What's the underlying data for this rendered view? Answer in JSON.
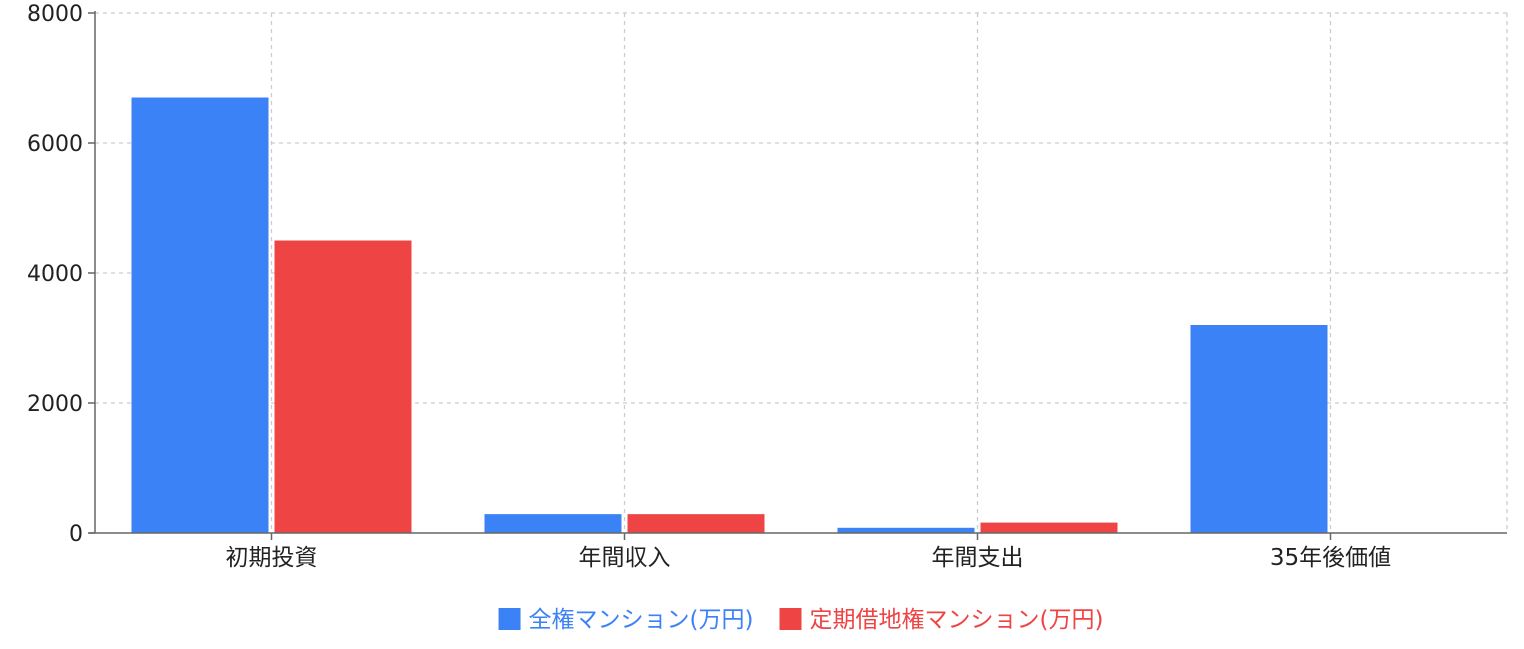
{
  "chart_data": {
    "type": "bar",
    "categories": [
      "初期投資",
      "年間収入",
      "年間支出",
      "35年後価値"
    ],
    "series": [
      {
        "name": "全権マンション(万円)",
        "color": "#3b82f6",
        "values": [
          6700,
          290,
          80,
          3200
        ]
      },
      {
        "name": "定期借地権マンション(万円)",
        "color": "#ef4444",
        "values": [
          4500,
          290,
          160,
          0
        ]
      }
    ],
    "ylim": [
      0,
      8000
    ],
    "yticks": [
      0,
      2000,
      4000,
      6000,
      8000
    ],
    "grid": true,
    "legend_position": "bottom-center"
  }
}
